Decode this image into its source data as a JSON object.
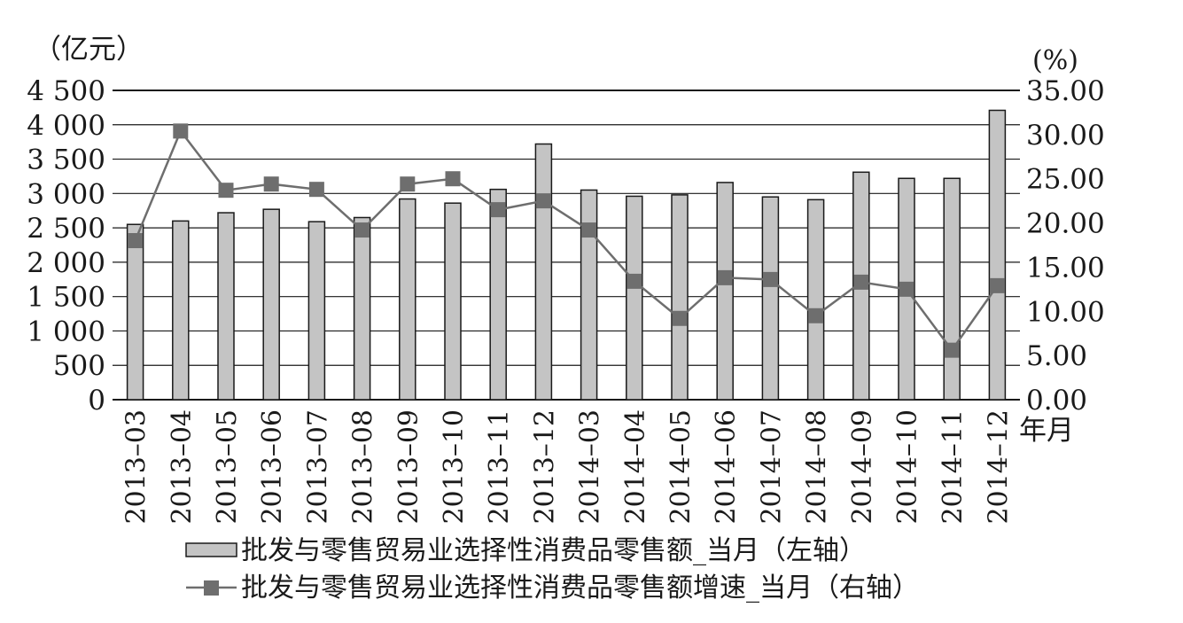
{
  "chart_data": {
    "type": "bar",
    "categories": [
      "2013–03",
      "2013–04",
      "2013–05",
      "2013–06",
      "2013–07",
      "2013–08",
      "2013–09",
      "2013–10",
      "2013–11",
      "2013–12",
      "2014–03",
      "2014–04",
      "2014–05",
      "2014–06",
      "2014–07",
      "2014–08",
      "2014–09",
      "2014–10",
      "2014–11",
      "2014–12"
    ],
    "series": [
      {
        "name": "批发与零售贸易业选择性消费品零售额_当月（左轴）",
        "type": "bar",
        "axis": "left",
        "values": [
          2550,
          2600,
          2720,
          2770,
          2590,
          2650,
          2920,
          2860,
          3060,
          3720,
          3050,
          2960,
          2980,
          3160,
          2950,
          2910,
          3310,
          3220,
          3220,
          4210
        ]
      },
      {
        "name": "批发与零售贸易业选择性消费品零售额增速_当月（右轴）",
        "type": "line",
        "axis": "right",
        "values": [
          18.0,
          30.4,
          23.7,
          24.4,
          23.8,
          19.2,
          24.4,
          25.0,
          21.5,
          22.5,
          19.2,
          13.4,
          9.2,
          13.8,
          13.6,
          9.5,
          13.3,
          12.5,
          5.6,
          12.9
        ]
      }
    ],
    "left_unit": "（亿元）",
    "right_unit": "(%)",
    "x_unit": "年月",
    "left_ticks": [
      "0",
      "500",
      "1 000",
      "1 500",
      "2 000",
      "2 500",
      "3 000",
      "3 500",
      "4 000",
      "4 500"
    ],
    "right_ticks": [
      "0.00",
      "5.00",
      "10.00",
      "15.00",
      "20.00",
      "25.00",
      "30.00",
      "35.00"
    ],
    "ylim_left": [
      0,
      4500
    ],
    "ylim_right": [
      0,
      35
    ],
    "grid": true,
    "legend_position": "bottom",
    "colors": {
      "bar_fill": "#c4c4c4",
      "bar_stroke": "#1a1a1a",
      "line": "#6e6e6e",
      "marker": "#6e6e6e",
      "grid": "#1a1a1a",
      "text": "#1a1a1a"
    }
  }
}
